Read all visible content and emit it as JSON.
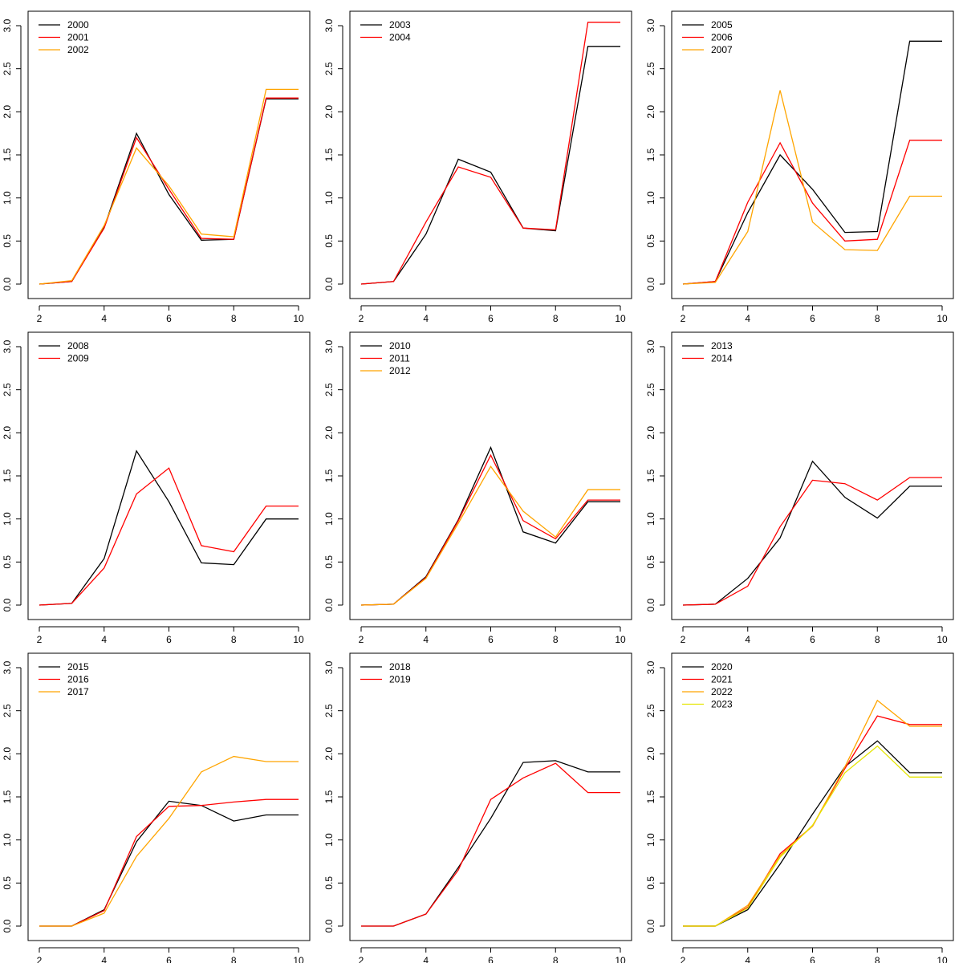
{
  "chart_data": [
    {
      "type": "line",
      "title": "",
      "xlabel": "",
      "ylabel": "",
      "xlim": [
        2,
        10
      ],
      "ylim": [
        0,
        3
      ],
      "xticks": [
        "2",
        "4",
        "6",
        "8",
        "10"
      ],
      "yticks": [
        "0.0",
        "0.5",
        "1.0",
        "1.5",
        "2.0",
        "2.5",
        "3.0"
      ],
      "grid": false,
      "legend_position": "top-left",
      "x": [
        2,
        3,
        4,
        5,
        6,
        7,
        8,
        9,
        10
      ],
      "series": [
        {
          "name": "2000",
          "color": "#000000",
          "values": [
            0.0,
            0.03,
            0.66,
            1.75,
            1.04,
            0.51,
            0.52,
            2.15,
            2.15
          ]
        },
        {
          "name": "2001",
          "color": "#ff0000",
          "values": [
            0.0,
            0.03,
            0.65,
            1.7,
            1.1,
            0.53,
            0.52,
            2.16,
            2.16
          ]
        },
        {
          "name": "2002",
          "color": "#ffa500",
          "values": [
            0.0,
            0.04,
            0.68,
            1.58,
            1.14,
            0.58,
            0.55,
            2.26,
            2.26
          ]
        }
      ]
    },
    {
      "type": "line",
      "title": "",
      "xlabel": "",
      "ylabel": "",
      "xlim": [
        2,
        10
      ],
      "ylim": [
        0,
        3
      ],
      "xticks": [
        "2",
        "4",
        "6",
        "8",
        "10"
      ],
      "yticks": [
        "0.0",
        "0.5",
        "1.0",
        "1.5",
        "2.0",
        "2.5",
        "3.0"
      ],
      "grid": false,
      "legend_position": "top-left",
      "x": [
        2,
        3,
        4,
        5,
        6,
        7,
        8,
        9,
        10
      ],
      "series": [
        {
          "name": "2003",
          "color": "#000000",
          "values": [
            0.0,
            0.03,
            0.58,
            1.45,
            1.3,
            0.65,
            0.62,
            2.76,
            2.76
          ]
        },
        {
          "name": "2004",
          "color": "#ff0000",
          "values": [
            0.0,
            0.03,
            0.72,
            1.36,
            1.24,
            0.65,
            0.63,
            3.04,
            3.04
          ]
        }
      ]
    },
    {
      "type": "line",
      "title": "",
      "xlabel": "",
      "ylabel": "",
      "xlim": [
        2,
        10
      ],
      "ylim": [
        0,
        3
      ],
      "xticks": [
        "2",
        "4",
        "6",
        "8",
        "10"
      ],
      "yticks": [
        "0.0",
        "0.5",
        "1.0",
        "1.5",
        "2.0",
        "2.5",
        "3.0"
      ],
      "grid": false,
      "legend_position": "top-left",
      "x": [
        2,
        3,
        4,
        5,
        6,
        7,
        8,
        9,
        10
      ],
      "series": [
        {
          "name": "2005",
          "color": "#000000",
          "values": [
            0.0,
            0.03,
            0.83,
            1.5,
            1.1,
            0.6,
            0.61,
            2.82,
            2.82
          ]
        },
        {
          "name": "2006",
          "color": "#ff0000",
          "values": [
            0.0,
            0.03,
            0.95,
            1.64,
            0.94,
            0.5,
            0.52,
            1.67,
            1.67
          ]
        },
        {
          "name": "2007",
          "color": "#ffa500",
          "values": [
            0.0,
            0.02,
            0.61,
            2.25,
            0.72,
            0.4,
            0.39,
            1.02,
            1.02
          ]
        }
      ]
    },
    {
      "type": "line",
      "title": "",
      "xlabel": "",
      "ylabel": "",
      "xlim": [
        2,
        10
      ],
      "ylim": [
        0,
        3
      ],
      "xticks": [
        "2",
        "4",
        "6",
        "8",
        "10"
      ],
      "yticks": [
        "0.0",
        "0.5",
        "1.0",
        "1.5",
        "2.0",
        "2.5",
        "3.0"
      ],
      "grid": false,
      "legend_position": "top-left",
      "x": [
        2,
        3,
        4,
        5,
        6,
        7,
        8,
        9,
        10
      ],
      "series": [
        {
          "name": "2008",
          "color": "#000000",
          "values": [
            0.0,
            0.02,
            0.54,
            1.79,
            1.2,
            0.49,
            0.47,
            1.0,
            1.0
          ]
        },
        {
          "name": "2009",
          "color": "#ff0000",
          "values": [
            0.0,
            0.02,
            0.43,
            1.29,
            1.59,
            0.69,
            0.62,
            1.15,
            1.15
          ]
        }
      ]
    },
    {
      "type": "line",
      "title": "",
      "xlabel": "",
      "ylabel": "",
      "xlim": [
        2,
        10
      ],
      "ylim": [
        0,
        3
      ],
      "xticks": [
        "2",
        "4",
        "6",
        "8",
        "10"
      ],
      "yticks": [
        "0.0",
        "0.5",
        "1.0",
        "1.5",
        "2.0",
        "2.5",
        "3.0"
      ],
      "grid": false,
      "legend_position": "top-left",
      "x": [
        2,
        3,
        4,
        5,
        6,
        7,
        8,
        9,
        10
      ],
      "series": [
        {
          "name": "2010",
          "color": "#000000",
          "values": [
            0.0,
            0.01,
            0.33,
            0.99,
            1.83,
            0.85,
            0.72,
            1.2,
            1.2
          ]
        },
        {
          "name": "2011",
          "color": "#ff0000",
          "values": [
            0.0,
            0.01,
            0.32,
            0.98,
            1.74,
            0.98,
            0.77,
            1.22,
            1.22
          ]
        },
        {
          "name": "2012",
          "color": "#ffa500",
          "values": [
            0.0,
            0.01,
            0.31,
            0.95,
            1.61,
            1.09,
            0.79,
            1.34,
            1.34
          ]
        }
      ]
    },
    {
      "type": "line",
      "title": "",
      "xlabel": "",
      "ylabel": "",
      "xlim": [
        2,
        10
      ],
      "ylim": [
        0,
        3
      ],
      "xticks": [
        "2",
        "4",
        "6",
        "8",
        "10"
      ],
      "yticks": [
        "0.0",
        "0.5",
        "1.0",
        "1.5",
        "2.0",
        "2.5",
        "3.0"
      ],
      "grid": false,
      "legend_position": "top-left",
      "x": [
        2,
        3,
        4,
        5,
        6,
        7,
        8,
        9,
        10
      ],
      "series": [
        {
          "name": "2013",
          "color": "#000000",
          "values": [
            0.0,
            0.01,
            0.31,
            0.78,
            1.67,
            1.25,
            1.01,
            1.38,
            1.38
          ]
        },
        {
          "name": "2014",
          "color": "#ff0000",
          "values": [
            0.0,
            0.01,
            0.22,
            0.91,
            1.45,
            1.41,
            1.22,
            1.48,
            1.48
          ]
        }
      ]
    },
    {
      "type": "line",
      "title": "",
      "xlabel": "",
      "ylabel": "",
      "xlim": [
        2,
        10
      ],
      "ylim": [
        0,
        3
      ],
      "xticks": [
        "2",
        "4",
        "6",
        "8",
        "10"
      ],
      "yticks": [
        "0.0",
        "0.5",
        "1.0",
        "1.5",
        "2.0",
        "2.5",
        "3.0"
      ],
      "grid": false,
      "legend_position": "top-left",
      "x": [
        2,
        3,
        4,
        5,
        6,
        7,
        8,
        9,
        10
      ],
      "series": [
        {
          "name": "2015",
          "color": "#000000",
          "values": [
            0.0,
            0.0,
            0.19,
            0.98,
            1.45,
            1.4,
            1.22,
            1.29,
            1.29
          ]
        },
        {
          "name": "2016",
          "color": "#ff0000",
          "values": [
            0.0,
            0.0,
            0.18,
            1.04,
            1.39,
            1.4,
            1.44,
            1.47,
            1.47
          ]
        },
        {
          "name": "2017",
          "color": "#ffa500",
          "values": [
            0.0,
            0.0,
            0.15,
            0.81,
            1.25,
            1.79,
            1.97,
            1.91,
            1.91
          ]
        }
      ]
    },
    {
      "type": "line",
      "title": "",
      "xlabel": "",
      "ylabel": "",
      "xlim": [
        2,
        10
      ],
      "ylim": [
        0,
        3
      ],
      "xticks": [
        "2",
        "4",
        "6",
        "8",
        "10"
      ],
      "yticks": [
        "0.0",
        "0.5",
        "1.0",
        "1.5",
        "2.0",
        "2.5",
        "3.0"
      ],
      "grid": false,
      "legend_position": "top-left",
      "x": [
        2,
        3,
        4,
        5,
        6,
        7,
        8,
        9,
        10
      ],
      "series": [
        {
          "name": "2018",
          "color": "#000000",
          "values": [
            0.0,
            0.0,
            0.14,
            0.68,
            1.25,
            1.9,
            1.92,
            1.79,
            1.79
          ]
        },
        {
          "name": "2019",
          "color": "#ff0000",
          "values": [
            0.0,
            0.0,
            0.14,
            0.65,
            1.47,
            1.72,
            1.89,
            1.55,
            1.55
          ]
        }
      ]
    },
    {
      "type": "line",
      "title": "",
      "xlabel": "",
      "ylabel": "",
      "xlim": [
        2,
        10
      ],
      "ylim": [
        0,
        3
      ],
      "xticks": [
        "2",
        "4",
        "6",
        "8",
        "10"
      ],
      "yticks": [
        "0.0",
        "0.5",
        "1.0",
        "1.5",
        "2.0",
        "2.5",
        "3.0"
      ],
      "grid": false,
      "legend_position": "top-left",
      "x": [
        2,
        3,
        4,
        5,
        6,
        7,
        8,
        9,
        10
      ],
      "series": [
        {
          "name": "2020",
          "color": "#000000",
          "values": [
            0.0,
            0.0,
            0.19,
            0.72,
            1.3,
            1.85,
            2.15,
            1.78,
            1.78
          ]
        },
        {
          "name": "2021",
          "color": "#ff0000",
          "values": [
            0.0,
            0.0,
            0.22,
            0.84,
            1.16,
            1.83,
            2.44,
            2.34,
            2.34
          ]
        },
        {
          "name": "2022",
          "color": "#ffa500",
          "values": [
            0.0,
            0.0,
            0.24,
            0.82,
            1.16,
            1.85,
            2.62,
            2.32,
            2.32
          ]
        },
        {
          "name": "2023",
          "color": "#e5e500",
          "values": [
            0.0,
            0.0,
            0.21,
            0.8,
            1.17,
            1.78,
            2.09,
            1.73,
            1.73
          ]
        }
      ]
    }
  ]
}
